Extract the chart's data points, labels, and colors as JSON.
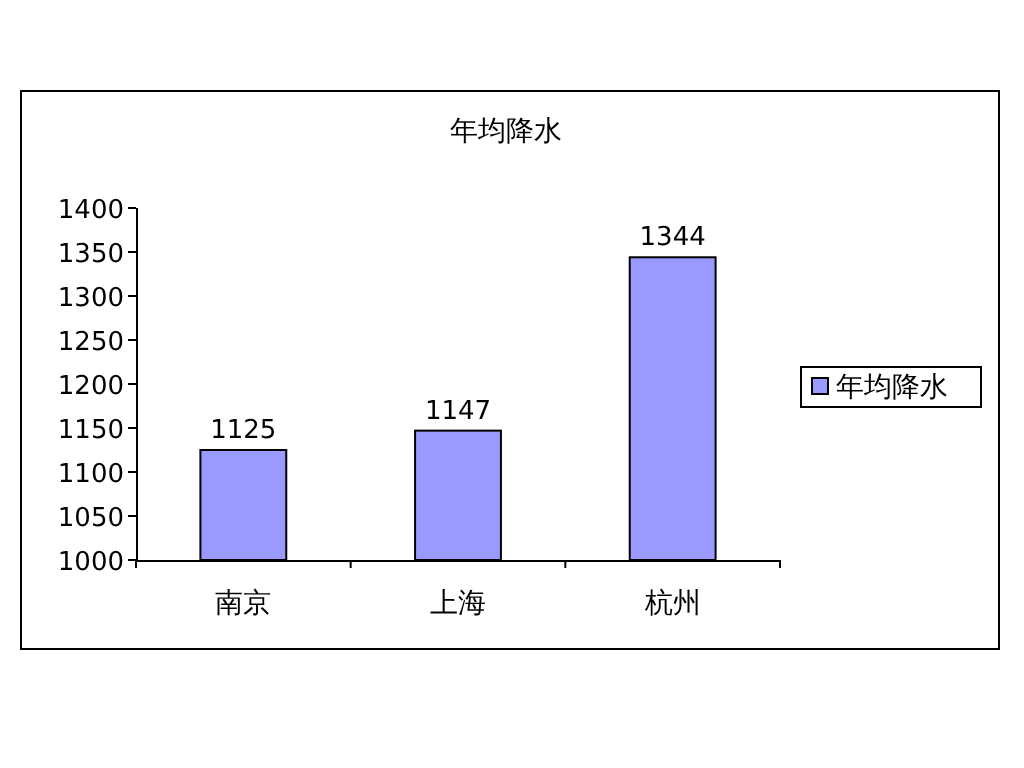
{
  "chart_data": {
    "type": "bar",
    "title": "年均降水",
    "categories": [
      "南京",
      "上海",
      "杭州"
    ],
    "series": [
      {
        "name": "年均降水",
        "color": "#9999ff",
        "values": [
          1125,
          1147,
          1344
        ]
      }
    ],
    "ylim": [
      1000,
      1400
    ],
    "yticks": [
      1000,
      1050,
      1100,
      1150,
      1200,
      1250,
      1300,
      1350,
      1400
    ],
    "data_labels": true,
    "legend": "right"
  }
}
